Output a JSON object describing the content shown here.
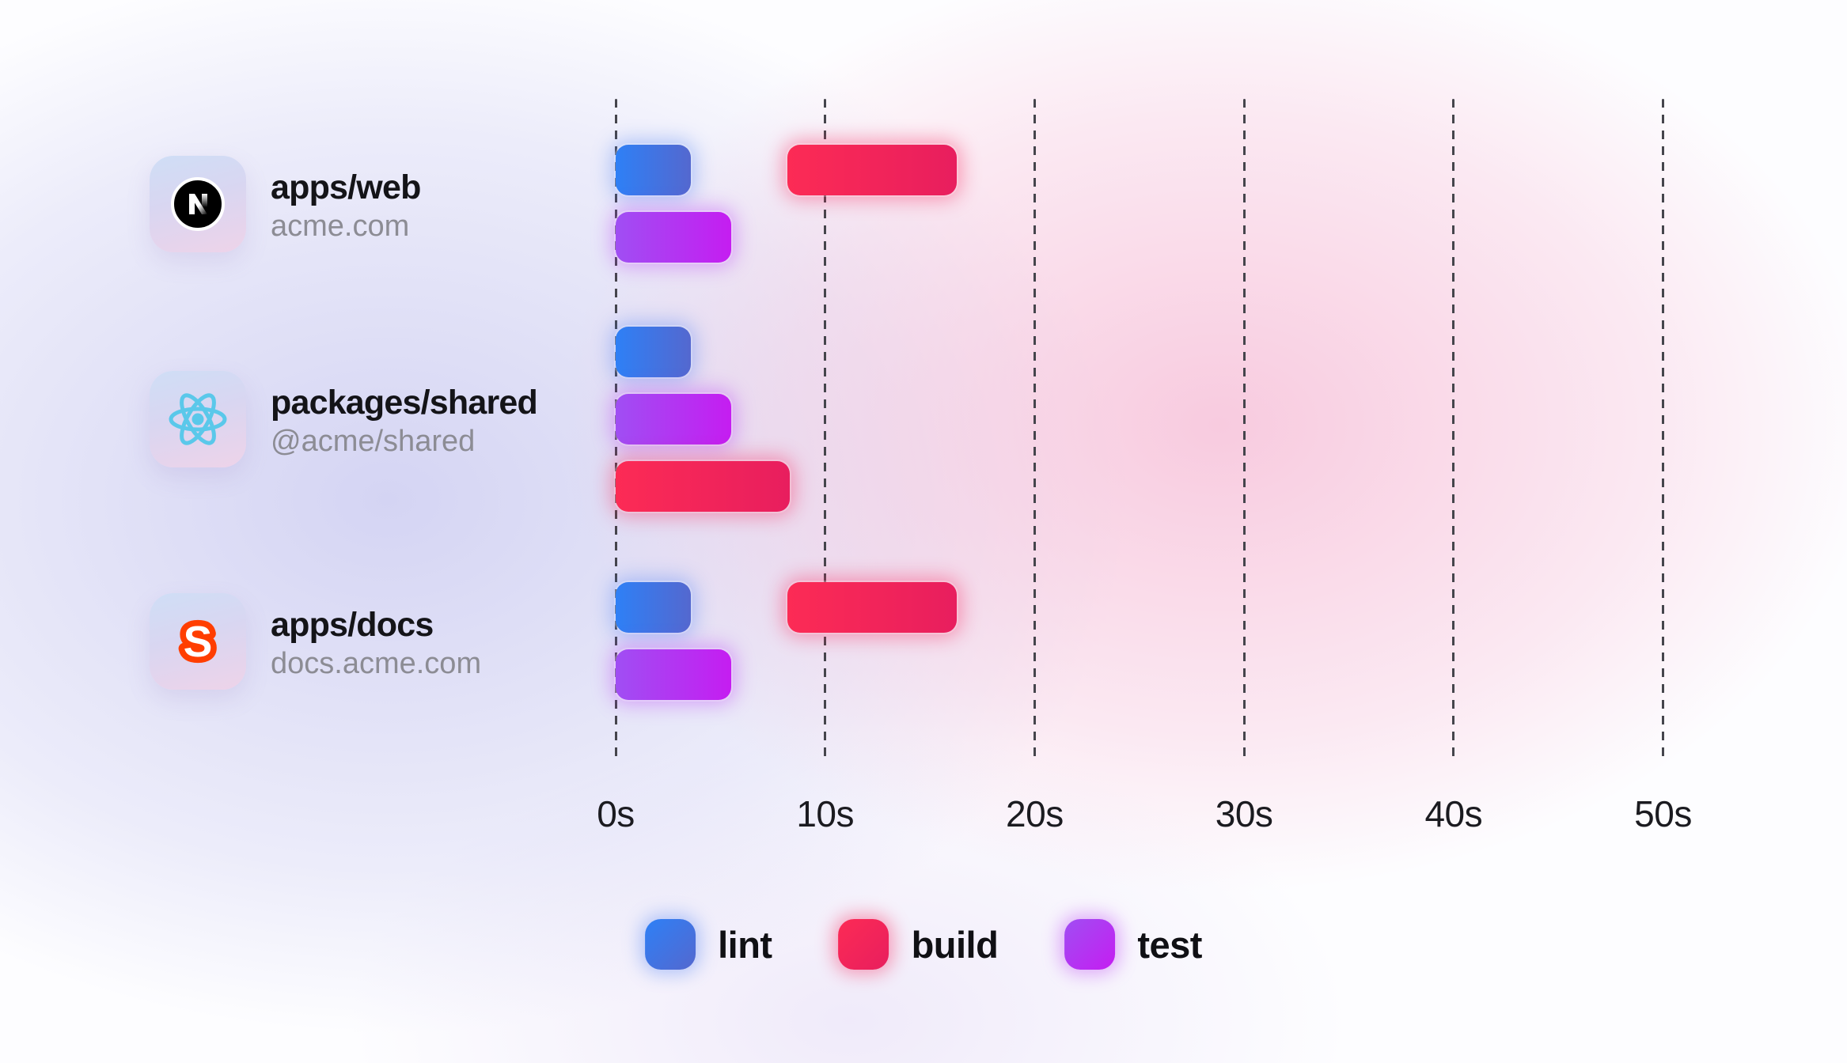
{
  "chart_data": {
    "type": "gantt",
    "title": "",
    "x_unit": "seconds",
    "x_ticks": [
      "0s",
      "10s",
      "20s",
      "30s",
      "40s",
      "50s"
    ],
    "x_range": [
      0,
      50
    ],
    "grid": "dashed-vertical",
    "legend_position": "bottom-center",
    "task_colors": {
      "lint": {
        "from": "#2e80f6",
        "to": "#5468cf"
      },
      "build": {
        "from": "#fc2b55",
        "to": "#e81e5e"
      },
      "test": {
        "from": "#a04ef3",
        "to": "#c51df1"
      }
    },
    "rows": [
      {
        "package": "apps/web",
        "caption": "acme.com",
        "icon": "nextjs-logo",
        "lanes": [
          [
            {
              "task": "lint",
              "start": 0,
              "end": 3.6
            },
            {
              "task": "build",
              "start": 8.2,
              "end": 16.3
            }
          ],
          [
            {
              "task": "test",
              "start": 0,
              "end": 5.5
            }
          ]
        ]
      },
      {
        "package": "packages/shared",
        "caption": "@acme/shared",
        "icon": "react-logo",
        "lanes": [
          [
            {
              "task": "lint",
              "start": 0,
              "end": 3.6
            }
          ],
          [
            {
              "task": "test",
              "start": 0,
              "end": 5.5
            }
          ],
          [
            {
              "task": "build",
              "start": 0,
              "end": 8.3
            }
          ]
        ]
      },
      {
        "package": "apps/docs",
        "caption": "docs.acme.com",
        "icon": "svelte-logo",
        "lanes": [
          [
            {
              "task": "lint",
              "start": 0,
              "end": 3.6
            },
            {
              "task": "build",
              "start": 8.2,
              "end": 16.3
            }
          ],
          [
            {
              "task": "test",
              "start": 0,
              "end": 5.5
            }
          ]
        ]
      }
    ],
    "legend": [
      {
        "label": "lint"
      },
      {
        "label": "build"
      },
      {
        "label": "test"
      }
    ]
  }
}
